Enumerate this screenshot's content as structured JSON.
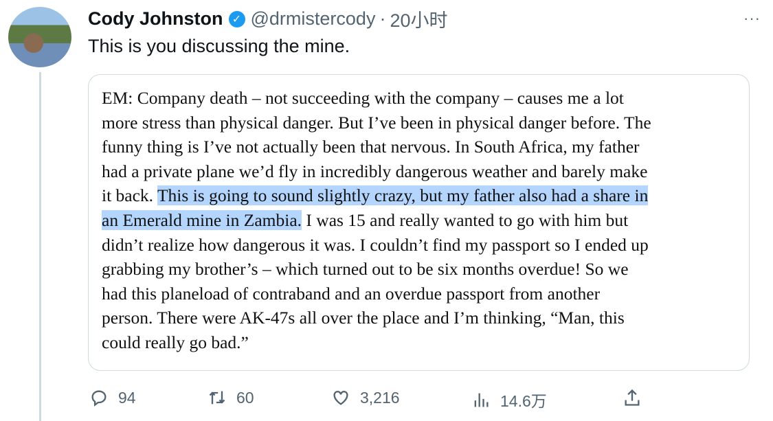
{
  "author": {
    "name": "Cody Johnston",
    "handle": "@drmistercody",
    "separator": "·",
    "time": "20小时",
    "verified": true
  },
  "tweet": {
    "text": "This is you discussing the mine."
  },
  "quote_lines": [
    [
      {
        "t": "EM: Company death – not succeeding with the company – causes me a lot",
        "h": false
      }
    ],
    [
      {
        "t": "more stress than physical danger. But I’ve been in physical danger before. The",
        "h": false
      }
    ],
    [
      {
        "t": "funny thing is I’ve not actually been that nervous. In South Africa, my father",
        "h": false
      }
    ],
    [
      {
        "t": "had a private plane we’d fly in incredibly dangerous weather and barely make",
        "h": false
      }
    ],
    [
      {
        "t": "it back. ",
        "h": false
      },
      {
        "t": "This is going to sound slightly crazy, but my father also had a share in",
        "h": true
      }
    ],
    [
      {
        "t": "an Emerald mine in Zambia.",
        "h": true
      },
      {
        "t": " I was 15 and really wanted to go with him but",
        "h": false
      }
    ],
    [
      {
        "t": "didn’t realize how dangerous it was. I couldn’t find my passport so I ended up",
        "h": false
      }
    ],
    [
      {
        "t": "grabbing my brother’s – which turned out to be six months overdue! So we",
        "h": false
      }
    ],
    [
      {
        "t": "had this planeload of contraband and an overdue passport from another",
        "h": false
      }
    ],
    [
      {
        "t": "person. There were AK-47s all over the place and I’m thinking, “Man, this",
        "h": false
      }
    ],
    [
      {
        "t": "could really go bad.”",
        "h": false
      }
    ]
  ],
  "highlight_color": "#b4d5fe",
  "actions": {
    "replies": "94",
    "retweets": "60",
    "likes": "3,216",
    "views": "14.6万"
  },
  "more_label": "···"
}
